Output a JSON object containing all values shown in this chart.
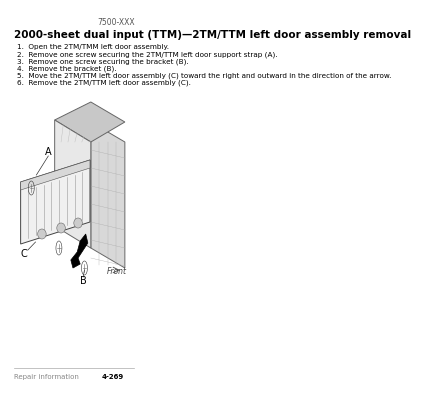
{
  "page_id": "7500-XXX",
  "title": "2000-sheet dual input (TTM)—2TM/TTM left door assembly removal",
  "steps": [
    "1.  Open the 2TM/TMM left door assembly.",
    "2.  Remove one screw securing the 2TM/TTM left door support strap (A).",
    "3.  Remove one screw securing the bracket (B).",
    "4.  Remove the bracket (B).",
    "5.  Move the 2TM/TTM left door assembly (C) toward the right and outward in the direction of the arrow.",
    "6.  Remove the 2TM/TTM left door assembly (C)."
  ],
  "footer_left": "Repair information",
  "footer_right": "4-269",
  "bg_color": "#ffffff",
  "text_color": "#000000",
  "title_fontsize": 7.5,
  "step_fontsize": 5.2,
  "footer_fontsize": 5.0,
  "page_id_fontsize": 5.5,
  "label_A": "A",
  "label_B": "B",
  "label_C": "C",
  "label_Front": "Front"
}
